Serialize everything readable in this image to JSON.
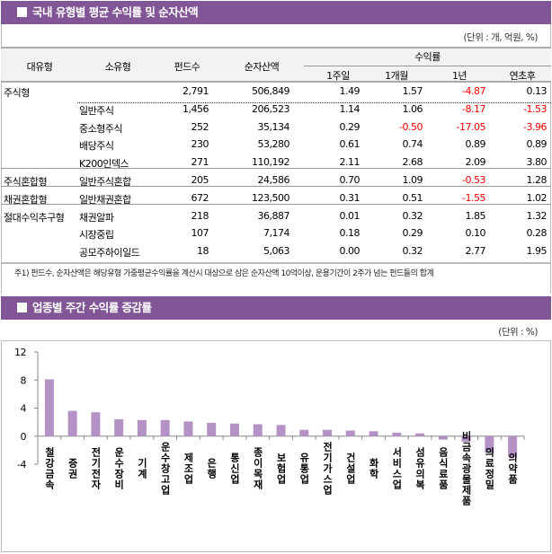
{
  "section1": {
    "title": "국내 유형별 평균 수익률 및 순자산액",
    "unit": "(단위 : 개, 억원, %)",
    "headers": {
      "major": "대유형",
      "minor": "소유형",
      "funds": "펀드수",
      "assets": "순자산액",
      "returns": "수익률",
      "w1": "1주일",
      "m1": "1개월",
      "y1": "1년",
      "ytd": "연초후"
    },
    "rows": [
      {
        "major": "주식형",
        "minor": "",
        "funds": "2,791",
        "assets": "506,849",
        "w1": "1.49",
        "m1": "1.57",
        "y1": "-4.87",
        "ytd": "0.13"
      },
      {
        "major": "",
        "minor": "일반주식",
        "funds": "1,456",
        "assets": "206,523",
        "w1": "1.14",
        "m1": "1.06",
        "y1": "-8.17",
        "ytd": "-1.53"
      },
      {
        "major": "",
        "minor": "중소형주식",
        "funds": "252",
        "assets": "35,134",
        "w1": "0.29",
        "m1": "-0.50",
        "y1": "-17.05",
        "ytd": "-3.96"
      },
      {
        "major": "",
        "minor": "배당주식",
        "funds": "230",
        "assets": "53,280",
        "w1": "0.61",
        "m1": "0.74",
        "y1": "0.89",
        "ytd": "0.89"
      },
      {
        "major": "",
        "minor": "K200인덱스",
        "funds": "271",
        "assets": "110,192",
        "w1": "2.11",
        "m1": "2.68",
        "y1": "2.09",
        "ytd": "3.80"
      },
      {
        "major": "주식혼합형",
        "minor": "일반주식혼합",
        "funds": "205",
        "assets": "24,586",
        "w1": "0.70",
        "m1": "1.09",
        "y1": "-0.53",
        "ytd": "1.28"
      },
      {
        "major": "채권혼합형",
        "minor": "일반채권혼합",
        "funds": "672",
        "assets": "123,500",
        "w1": "0.31",
        "m1": "0.51",
        "y1": "-1.55",
        "ytd": "1.02"
      },
      {
        "major": "절대수익추구형",
        "minor": "채권알파",
        "funds": "218",
        "assets": "36,887",
        "w1": "0.01",
        "m1": "0.32",
        "y1": "1.85",
        "ytd": "1.32"
      },
      {
        "major": "",
        "minor": "시장중립",
        "funds": "107",
        "assets": "7,174",
        "w1": "0.18",
        "m1": "0.29",
        "y1": "0.10",
        "ytd": "0.28"
      },
      {
        "major": "",
        "minor": "공모주하이일드",
        "funds": "18",
        "assets": "5,063",
        "w1": "0.00",
        "m1": "0.32",
        "y1": "2.77",
        "ytd": "1.95"
      }
    ],
    "note": "주1) 펀드수, 순자산액은 해당유형 가중평균수익률을 계산시 대상으로 삼은 순자산액 10억이상, 운용기간이 2주가 넘는 펀드들의 합계"
  },
  "section2": {
    "title": "업종별 주간 수익률 증감률",
    "unit": "(단위 : %)"
  },
  "colors": {
    "header": "#825596",
    "bar": "#b592c6",
    "negative": "#ff0000"
  },
  "chart_data": {
    "type": "bar",
    "title": "",
    "xlabel": "",
    "ylabel": "",
    "ylim": [
      -4,
      12
    ],
    "yticks": [
      "12",
      "8",
      "4",
      "0",
      "-4"
    ],
    "grid": false,
    "legend": "none",
    "categories": [
      "철강금속",
      "증권",
      "전기전자",
      "운수장비",
      "기계",
      "운수창고업",
      "제조업",
      "은행",
      "통신업",
      "종이목재",
      "보험업",
      "유통업",
      "전기가스업",
      "건설업",
      "화학",
      "서비스업",
      "섬유의복",
      "음식료품",
      "비금속광물제품",
      "의료정밀",
      "의약품"
    ],
    "values": [
      8.1,
      3.6,
      3.4,
      2.4,
      2.3,
      2.3,
      2.1,
      1.9,
      1.8,
      1.7,
      1.6,
      0.9,
      0.9,
      0.8,
      0.7,
      0.5,
      0.4,
      -0.5,
      -0.8,
      -2.4,
      -3.0
    ]
  }
}
